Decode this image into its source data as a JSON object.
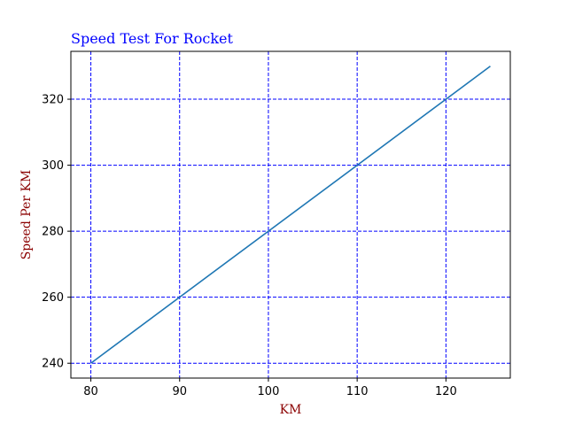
{
  "chart_data": {
    "type": "line",
    "title": "Speed Test For Rocket",
    "xlabel": "KM",
    "ylabel": "Speed Per KM",
    "x": [
      80,
      125
    ],
    "series": [
      {
        "values": [
          240,
          330
        ]
      }
    ],
    "xlim": [
      77.75,
      127.25
    ],
    "ylim": [
      235.5,
      334.5
    ],
    "xticks": [
      80,
      90,
      100,
      110,
      120
    ],
    "yticks": [
      240,
      260,
      280,
      300,
      320
    ],
    "grid": true,
    "colors": {
      "title": "#0000ff",
      "axis_labels": "#8b0000",
      "grid": "#0000ff",
      "line": "#1f77b4"
    }
  }
}
